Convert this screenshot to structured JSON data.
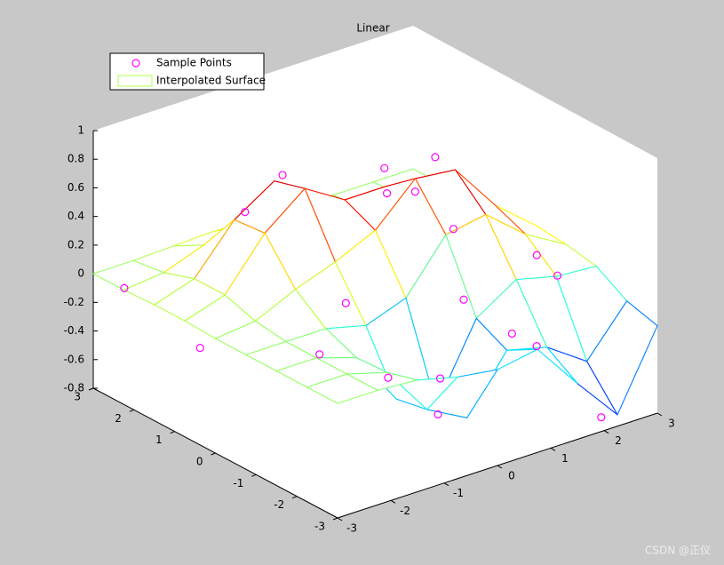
{
  "chart_data": {
    "type": "mesh3d",
    "title": "Linear",
    "xlim": [
      -3,
      3
    ],
    "ylim": [
      -3,
      3
    ],
    "zlim": [
      -0.8,
      1
    ],
    "xticks": [
      -3,
      -2,
      -1,
      0,
      1,
      2,
      3
    ],
    "yticks": [
      -3,
      -2,
      -1,
      0,
      1,
      2,
      3
    ],
    "zticks": [
      -0.8,
      -0.6,
      -0.4,
      -0.2,
      0,
      0.2,
      0.4,
      0.6,
      0.8,
      1
    ],
    "legend": "upper left",
    "series": [
      {
        "name": "Sample Points",
        "type": "scatter3",
        "color": "#ff00ff",
        "x": [
          -0.9,
          1.2,
          0.4,
          -1.3,
          0.6,
          0.9,
          -0.2,
          2.1,
          -2.8,
          -2.6,
          -1.2,
          -0.6,
          2.5,
          2.8,
          1.5,
          0.3,
          1.8,
          2.0,
          -0.4,
          1.2
        ],
        "y": [
          1.1,
          0.1,
          0.3,
          1.5,
          0.5,
          0.2,
          -1.8,
          -2.8,
          2.5,
          0.9,
          -0.2,
          -1.1,
          -1.2,
          -0.3,
          -2.0,
          -1.2,
          -1.0,
          0.7,
          0.2,
          -0.6
        ],
        "z": [
          0.72,
          0.74,
          0.73,
          0.45,
          0.5,
          0.52,
          -0.6,
          -0.75,
          -0.05,
          -0.25,
          -0.3,
          -0.4,
          -0.05,
          -0.08,
          -0.3,
          -0.5,
          -0.4,
          0.05,
          -0.1,
          -0.15
        ]
      },
      {
        "name": "Interpolated Surface",
        "type": "mesh",
        "colormap": "jet",
        "x": [
          -3,
          -2.25,
          -1.5,
          -0.75,
          0,
          0.75,
          1.5,
          2.25,
          3
        ],
        "y": [
          -3,
          -2.25,
          -1.5,
          -0.75,
          0,
          0.75,
          1.5,
          2.25,
          3
        ],
        "z": [
          [
            0,
            0,
            -0.02,
            -0.09,
            -0.13,
            -0.08,
            -0.41,
            -0.72,
            -0.19
          ],
          [
            0,
            0,
            -0.08,
            -0.43,
            -0.58,
            -0.2,
            -0.27,
            -0.46,
            -0.13
          ],
          [
            0,
            0,
            -0.09,
            -0.47,
            -0.61,
            -0.09,
            0.09,
            0.02,
            0
          ],
          [
            0,
            0,
            0,
            -0.07,
            0.03,
            0.38,
            0.43,
            0.2,
            0.04
          ],
          [
            0,
            0.03,
            0.16,
            0.26,
            0.39,
            0.66,
            0.63,
            0.29,
            0.06
          ],
          [
            0.01,
            0.1,
            0.44,
            0.66,
            0.49,
            0.49,
            0.43,
            0.2,
            0.04
          ],
          [
            0.01,
            0.1,
            0.42,
            0.6,
            0.34,
            0.18,
            0.14,
            0.07,
            0.01
          ],
          [
            0,
            0.03,
            0.13,
            0.18,
            0.09,
            0.03,
            0.02,
            0.01,
            0
          ],
          [
            0,
            0,
            0.01,
            0.02,
            0.01,
            0,
            0,
            0,
            0
          ]
        ]
      }
    ]
  },
  "watermark": "CSDN @正仪"
}
